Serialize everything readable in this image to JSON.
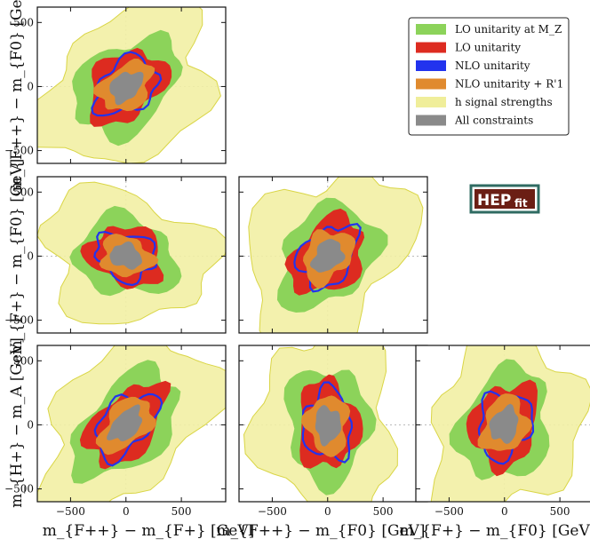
{
  "chart_data": {
    "type": "corner-contour",
    "units": "GeV",
    "legend": [
      {
        "key": "lo_mz",
        "label": "LO unitarity at M_Z",
        "color": "#8cd35a"
      },
      {
        "key": "lo",
        "label": "LO unitarity",
        "color": "#dd2b20"
      },
      {
        "key": "nlo",
        "label": "NLO unitarity",
        "color": "#2233ee"
      },
      {
        "key": "nlo_r1",
        "label": "NLO unitarity + R'1",
        "color": "#e08a2e"
      },
      {
        "key": "h_sig",
        "label": "h signal strengths",
        "color": "#f0ee9a"
      },
      {
        "key": "all",
        "label": "All constraints",
        "color": "#8a8a8a"
      }
    ],
    "logo": {
      "main": "HEP",
      "sub": "fit"
    },
    "x_axis_labels": [
      "m_{F++} − m_{F+} [GeV]",
      "m_{F++} − m_{F0} [GeV]",
      "m_{F+} − m_{F0} [GeV]"
    ],
    "y_axis_labels": [
      "m_{F++} − m_{F0} [GeV]",
      "m_{F+} − m_{F0} [GeV]",
      "m_{H+} − m_A [GeV]"
    ],
    "x_ticks": [
      -500,
      0,
      500
    ],
    "y_ticks": [
      500,
      0,
      -500
    ],
    "xlim": [
      -800,
      900
    ],
    "ylim": [
      -600,
      620
    ],
    "panels": [
      {
        "id": "p00",
        "row": 0,
        "col": 0,
        "center": [
          0,
          0
        ],
        "span": [
          330,
          220
        ],
        "corr": 0.55
      },
      {
        "id": "p10",
        "row": 1,
        "col": 0,
        "center": [
          0,
          0
        ],
        "span": [
          300,
          200
        ],
        "corr": -0.2
      },
      {
        "id": "p11",
        "row": 1,
        "col": 1,
        "center": [
          0,
          0
        ],
        "span": [
          320,
          230
        ],
        "corr": 0.75
      },
      {
        "id": "p20",
        "row": 2,
        "col": 0,
        "center": [
          0,
          0
        ],
        "span": [
          360,
          210
        ],
        "corr": 0.8
      },
      {
        "id": "p21",
        "row": 2,
        "col": 1,
        "center": [
          0,
          0
        ],
        "span": [
          240,
          300
        ],
        "corr": 0.1
      },
      {
        "id": "p22",
        "row": 2,
        "col": 2,
        "center": [
          0,
          0
        ],
        "span": [
          250,
          300
        ],
        "corr": -0.65
      }
    ]
  }
}
